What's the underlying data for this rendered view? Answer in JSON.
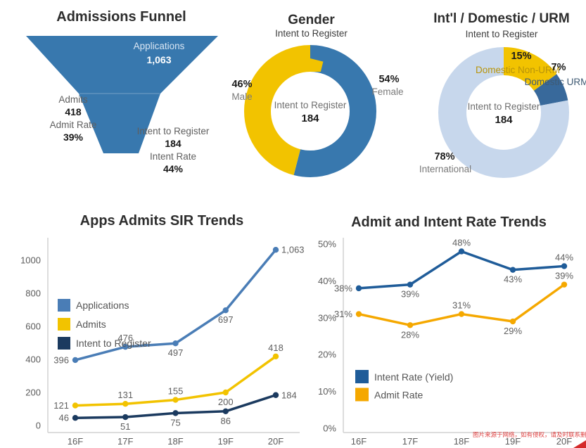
{
  "watermark": {
    "text": "图片来源于网络，如有侵权，请及时联系删除"
  },
  "chart_data": [
    {
      "type": "funnel",
      "title": "Admissions Funnel",
      "color": "#3878ae",
      "stages": [
        {
          "name": "Applications",
          "value": 1063,
          "value_label": "1,063"
        },
        {
          "name": "Admits",
          "value": 418,
          "value_label": "418",
          "rate_name": "Admit Rate",
          "rate_label": "39%"
        },
        {
          "name": "Intent to Register",
          "value": 184,
          "value_label": "184",
          "rate_name": "Intent Rate",
          "rate_label": "44%"
        }
      ]
    },
    {
      "type": "pie",
      "title": "Gender",
      "subtitle": "Intent to Register",
      "center_label": "Intent to Register",
      "center_value": "184",
      "slices": [
        {
          "label": "Female",
          "value": 54,
          "pct_label": "54%",
          "color": "#3878ae"
        },
        {
          "label": "Male",
          "value": 46,
          "pct_label": "46%",
          "color": "#f2c300"
        }
      ]
    },
    {
      "type": "pie",
      "title": "Int'l / Domestic / URM",
      "subtitle": "Intent to Register",
      "center_label": "Intent to Register",
      "center_value": "184",
      "slices": [
        {
          "label": "Domestic Non-URM",
          "value": 15,
          "pct_label": "15%",
          "color": "#f2c300"
        },
        {
          "label": "Domestic URM",
          "value": 7,
          "pct_label": "7%",
          "color": "#38699b"
        },
        {
          "label": "International",
          "value": 78,
          "pct_label": "78%",
          "color": "#c7d7ec"
        }
      ]
    },
    {
      "type": "line",
      "title": "Apps Admits SIR Trends",
      "categories": [
        "16F",
        "17F",
        "18F",
        "19F",
        "20F"
      ],
      "ylim": [
        0,
        1100
      ],
      "yticks": [
        0,
        200,
        400,
        600,
        800,
        1000
      ],
      "ytick_labels": [
        "0",
        "200",
        "400",
        "600",
        "800",
        "1000"
      ],
      "legend_position": "inside-top-left",
      "grid": false,
      "series": [
        {
          "name": "Applications",
          "color": "#4a7db6",
          "values": [
            396,
            476,
            497,
            697,
            1063
          ],
          "labels": [
            "396",
            "476",
            "497",
            "697",
            "1,063"
          ],
          "label_pos": [
            "left",
            "above",
            "below",
            "below",
            "right"
          ]
        },
        {
          "name": "Admits",
          "color": "#f2c300",
          "values": [
            121,
            131,
            155,
            200,
            418
          ],
          "labels": [
            "121",
            "131",
            "155",
            "200",
            "418"
          ],
          "label_pos": [
            "left",
            "above",
            "above",
            "below",
            "above"
          ]
        },
        {
          "name": "Intent to Register",
          "color": "#1b3a5f",
          "values": [
            46,
            51,
            75,
            86,
            184
          ],
          "labels": [
            "46",
            "51",
            "75",
            "86",
            "184"
          ],
          "label_pos": [
            "left",
            "below",
            "below",
            "below",
            "right"
          ]
        }
      ]
    },
    {
      "type": "line",
      "title": "Admit and Intent Rate Trends",
      "categories": [
        "16F",
        "17F",
        "18F",
        "19F",
        "20F"
      ],
      "ylim": [
        0,
        52
      ],
      "yticks": [
        0,
        10,
        20,
        30,
        40,
        50
      ],
      "ytick_labels": [
        "0%",
        "10%",
        "20%",
        "30%",
        "40%",
        "50%"
      ],
      "legend_position": "inside-bottom-left",
      "grid": false,
      "series": [
        {
          "name": "Intent Rate (Yield)",
          "color": "#1f5c99",
          "values": [
            38,
            39,
            48,
            43,
            44
          ],
          "labels": [
            "38%",
            "39%",
            "48%",
            "43%",
            "44%"
          ],
          "label_pos": [
            "left",
            "below",
            "above",
            "below",
            "above"
          ]
        },
        {
          "name": "Admit Rate",
          "color": "#f5a800",
          "values": [
            31,
            28,
            31,
            29,
            39
          ],
          "labels": [
            "31%",
            "28%",
            "31%",
            "29%",
            "39%"
          ],
          "label_pos": [
            "left",
            "below",
            "above",
            "below",
            "above"
          ]
        }
      ]
    }
  ]
}
